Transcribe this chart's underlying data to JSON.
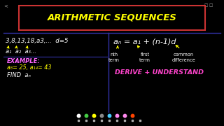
{
  "bg_color": "#000000",
  "title": "ARITHMETIC SEQUENCES",
  "title_color": "#ffff00",
  "title_box_color": "#cc3333",
  "divider_h_color": "#3333aa",
  "divider_v_color": "#3333aa",
  "sequence_text": "3,8,13,18,a3,...  d=5",
  "labels_text": "a₁  a₂  a₃...",
  "formula": "aₙ = a₁ + (n-1)d",
  "nth_term": "nth\nterm",
  "first_term": "first\nterm",
  "common_diff": "common\ndifference",
  "example_label": "EXAMPLE:",
  "example_vals": "a₈= 25, a₁₄= 43",
  "find_text": "FIND  aₙ",
  "derive_text": "DERIVE + UNDERSTAND",
  "white": "#ffffff",
  "yellow": "#ffff00",
  "cyan": "#ff66ff",
  "magenta": "#ff44cc",
  "toolbar_colors": [
    "#ffffff",
    "#44cc44",
    "#ffff00",
    "#888888",
    "#44ccff",
    "#ff88ee",
    "#ff88ee",
    "#ff4400"
  ]
}
